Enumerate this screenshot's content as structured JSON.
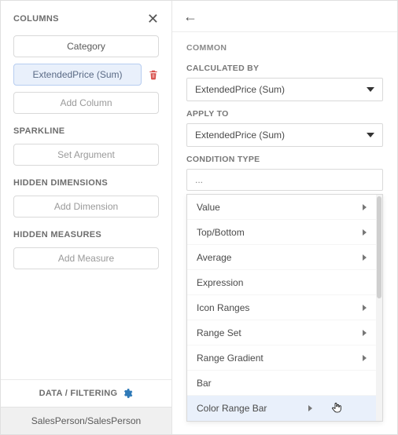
{
  "left": {
    "columns_title": "COLUMNS",
    "close_glyph": "✕",
    "items": {
      "category": "Category",
      "extended_price": "ExtendedPrice (Sum)",
      "add_column": "Add Column"
    },
    "sparkline_title": "SPARKLINE",
    "sparkline_btn": "Set Argument",
    "hidden_dim_title": "HIDDEN DIMENSIONS",
    "hidden_dim_btn": "Add Dimension",
    "hidden_meas_title": "HIDDEN MEASURES",
    "hidden_meas_btn": "Add Measure",
    "footer_label": "DATA / FILTERING",
    "crumb": "SalesPerson/SalesPerson"
  },
  "right": {
    "back_glyph": "←",
    "group_title": "COMMON",
    "calc_by_label": "CALCULATED BY",
    "calc_by_value": "ExtendedPrice (Sum)",
    "apply_to_label": "APPLY TO",
    "apply_to_value": "ExtendedPrice (Sum)",
    "cond_type_label": "CONDITION TYPE",
    "cond_type_value": "...",
    "options": [
      {
        "label": "Value",
        "submenu": true
      },
      {
        "label": "Top/Bottom",
        "submenu": true
      },
      {
        "label": "Average",
        "submenu": true
      },
      {
        "label": "Expression",
        "submenu": false
      },
      {
        "label": "Icon Ranges",
        "submenu": true
      },
      {
        "label": "Range Set",
        "submenu": true
      },
      {
        "label": "Range Gradient",
        "submenu": true
      },
      {
        "label": "Bar",
        "submenu": false
      },
      {
        "label": "Color Range Bar",
        "submenu": true,
        "hover": true
      }
    ]
  },
  "colors": {
    "selected_bg": "#e9f0fb",
    "selected_border": "#b7cdf0",
    "trash": "#d9534f",
    "gear": "#2f7ab8",
    "border": "#d9d9d9",
    "text": "#4a4a4a",
    "muted": "#8a8a8a"
  }
}
